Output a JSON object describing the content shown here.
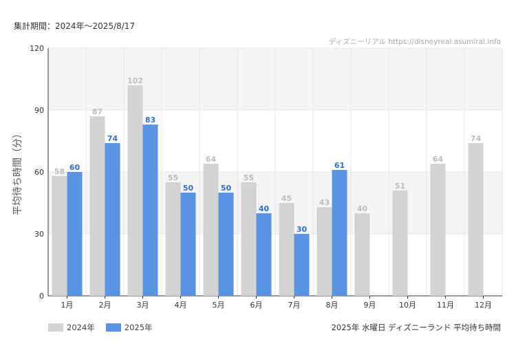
{
  "header": {
    "period": "集計期間：2024年〜2025/8/17"
  },
  "watermark": "ディズニーリアル https://disneyreal.asumirai.info",
  "footer": {
    "title": "2025年 水曜日 ディズニーランド 平均待ち時間"
  },
  "colors": {
    "s2024": "#d3d3d1",
    "s2025": "#5b93e3",
    "label2024": "#bdbdbd",
    "label2025": "#2f6fd0",
    "band": "#f4f4f4",
    "grid": "#e6e6e6"
  },
  "chart_data": {
    "type": "bar",
    "categories": [
      "1月",
      "2月",
      "3月",
      "4月",
      "5月",
      "6月",
      "7月",
      "8月",
      "9月",
      "10月",
      "11月",
      "12月"
    ],
    "series": [
      {
        "name": "2024年",
        "values": [
          58,
          87,
          102,
          55,
          64,
          55,
          45,
          43,
          40,
          51,
          64,
          74
        ]
      },
      {
        "name": "2025年",
        "values": [
          60,
          74,
          83,
          50,
          50,
          40,
          30,
          61,
          null,
          null,
          null,
          null
        ]
      }
    ],
    "ylabel": "平均待ち時間（分）",
    "ylim": [
      0,
      120
    ],
    "yticks": [
      0,
      30,
      60,
      90,
      120
    ],
    "legend": "bottom-left"
  }
}
